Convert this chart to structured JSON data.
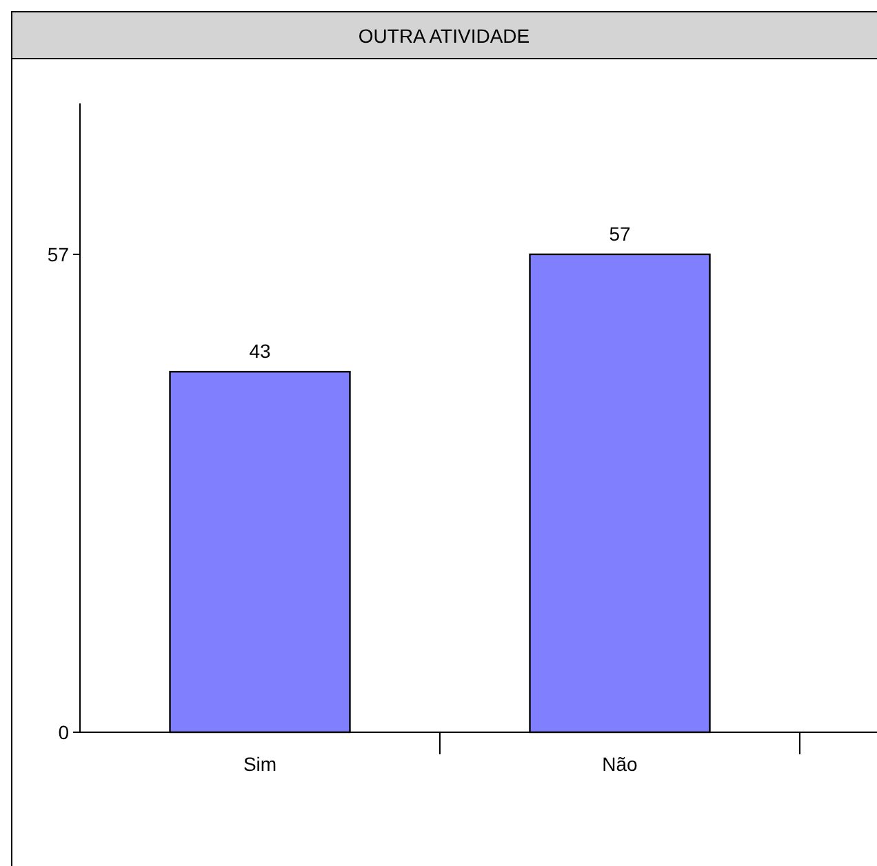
{
  "chart_data": {
    "type": "bar",
    "title": "OUTRA ATIVIDADE",
    "categories": [
      "Sim",
      "Não"
    ],
    "values": [
      43,
      57
    ],
    "color": "#8080ff",
    "ylim": [
      0,
      75
    ],
    "yticks": [
      0,
      57
    ],
    "data_labels": true
  }
}
